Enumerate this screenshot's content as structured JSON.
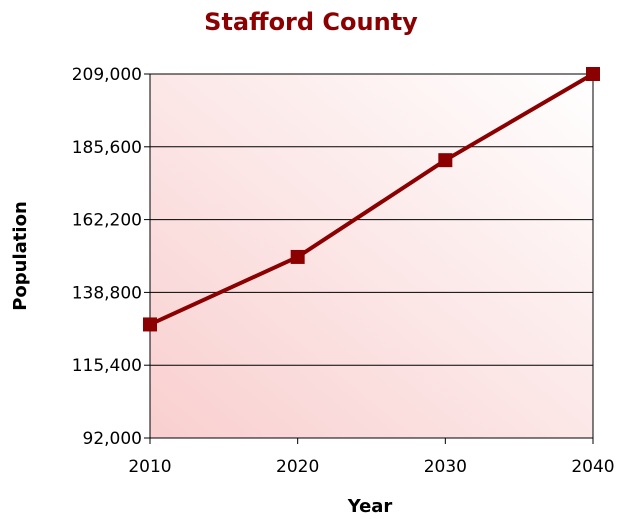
{
  "colors": {
    "title": "#8b0000",
    "series": "#8b0000",
    "grid": "#000000",
    "plot_bg_strong": "#f9cfcf",
    "plot_bg_light": "#ffffff"
  },
  "chart_data": {
    "type": "line",
    "title": "Stafford County",
    "xlabel": "Year",
    "ylabel": "Population",
    "x": [
      "2010",
      "2020",
      "2030",
      "2040"
    ],
    "series": [
      {
        "values": [
          128500,
          150200,
          181300,
          209000
        ]
      }
    ],
    "ylim": [
      92000,
      209000
    ],
    "yticks": [
      92000,
      115400,
      138800,
      162200,
      185600,
      209000
    ],
    "ytick_labels": [
      "92,000",
      "115,400",
      "138,800",
      "162,200",
      "185,600",
      "209,000"
    ],
    "grid": true,
    "marker": "square"
  }
}
